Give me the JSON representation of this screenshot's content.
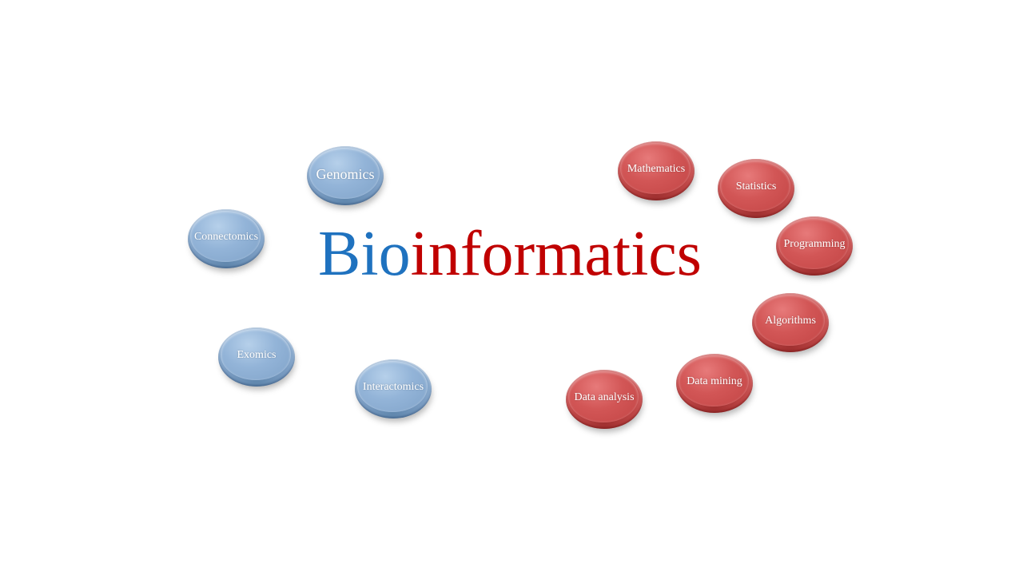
{
  "title": {
    "part_a": "Bio",
    "part_b": "informatics"
  },
  "colors": {
    "title_blue": "#1F72BF",
    "title_red": "#C00000",
    "disc_blue": "#8FB0D4",
    "disc_red": "#CC4C4C"
  },
  "left_group": [
    {
      "label": "Genomics"
    },
    {
      "label": "Connectomics"
    },
    {
      "label": "Exomics"
    },
    {
      "label": "Interactomics"
    }
  ],
  "right_group": [
    {
      "label": "Mathematics"
    },
    {
      "label": "Statistics"
    },
    {
      "label": "Programming"
    },
    {
      "label": "Algorithms"
    },
    {
      "label": "Data mining"
    },
    {
      "label": "Data analysis"
    }
  ]
}
